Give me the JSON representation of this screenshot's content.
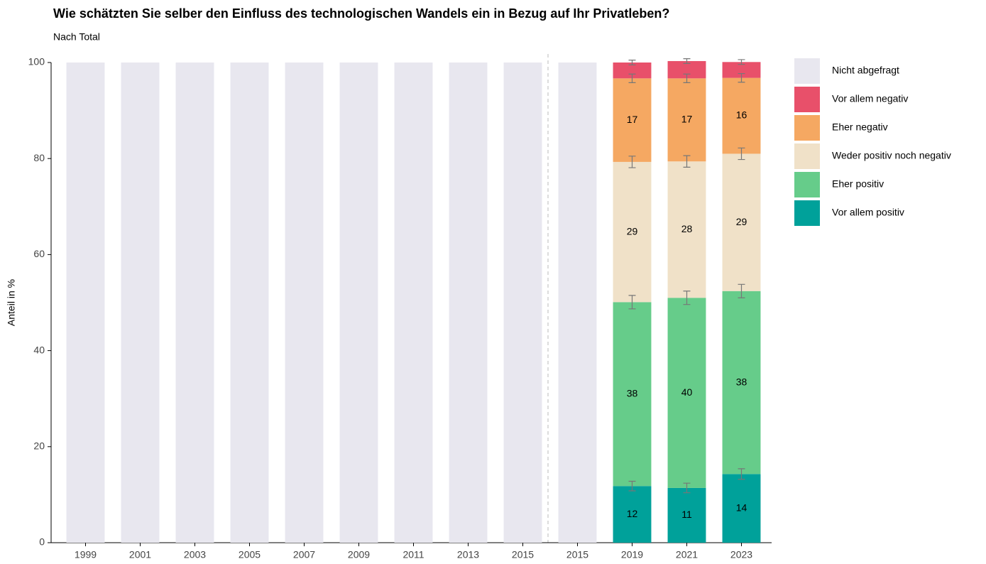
{
  "chart_data": {
    "type": "stacked_bar",
    "title": "Wie schätzten Sie selber den Einfluss des technologischen Wandels ein in Bezug auf Ihr Privatleben?",
    "subtitle": "Nach Total",
    "y_label": "Anteil in %",
    "categories": [
      "1999",
      "2001",
      "2003",
      "2005",
      "2007",
      "2009",
      "2011",
      "2013",
      "2015",
      "2015",
      "2019",
      "2021",
      "2023"
    ],
    "series": [
      {
        "name": "Vor allem positiv",
        "color": "#00a19a",
        "values": [
          null,
          null,
          null,
          null,
          null,
          null,
          null,
          null,
          null,
          null,
          11.8,
          11.4,
          14.3
        ],
        "value_labels": [
          null,
          null,
          null,
          null,
          null,
          null,
          null,
          null,
          null,
          null,
          "12",
          "11",
          "14"
        ],
        "errors": [
          null,
          null,
          null,
          null,
          null,
          null,
          null,
          null,
          null,
          null,
          1.0,
          1.0,
          1.1
        ]
      },
      {
        "name": "Eher positiv",
        "color": "#66cc8a",
        "values": [
          null,
          null,
          null,
          null,
          null,
          null,
          null,
          null,
          null,
          null,
          38.3,
          39.6,
          38.1
        ],
        "value_labels": [
          null,
          null,
          null,
          null,
          null,
          null,
          null,
          null,
          null,
          null,
          "38",
          "40",
          "38"
        ],
        "errors": [
          null,
          null,
          null,
          null,
          null,
          null,
          null,
          null,
          null,
          null,
          1.4,
          1.4,
          1.4
        ]
      },
      {
        "name": "Weder positiv noch negativ",
        "color": "#f0e1c8",
        "values": [
          null,
          null,
          null,
          null,
          null,
          null,
          null,
          null,
          null,
          null,
          29.2,
          28.4,
          28.6
        ],
        "value_labels": [
          null,
          null,
          null,
          null,
          null,
          null,
          null,
          null,
          null,
          null,
          "29",
          "28",
          "29"
        ],
        "errors": [
          null,
          null,
          null,
          null,
          null,
          null,
          null,
          null,
          null,
          null,
          1.2,
          1.2,
          1.2
        ]
      },
      {
        "name": "Eher negativ",
        "color": "#f5a862",
        "values": [
          null,
          null,
          null,
          null,
          null,
          null,
          null,
          null,
          null,
          null,
          17.4,
          17.3,
          15.8
        ],
        "value_labels": [
          null,
          null,
          null,
          null,
          null,
          null,
          null,
          null,
          null,
          null,
          "17",
          "17",
          "16"
        ],
        "errors": [
          null,
          null,
          null,
          null,
          null,
          null,
          null,
          null,
          null,
          null,
          0.9,
          0.9,
          0.9
        ]
      },
      {
        "name": "Vor allem negativ",
        "color": "#e8506a",
        "values": [
          null,
          null,
          null,
          null,
          null,
          null,
          null,
          null,
          null,
          null,
          3.3,
          3.6,
          3.3
        ],
        "errors": [
          null,
          null,
          null,
          null,
          null,
          null,
          null,
          null,
          null,
          null,
          0.5,
          0.5,
          0.5
        ]
      },
      {
        "name": "Nicht abgefragt",
        "color": "#e8e7ef",
        "values": [
          100,
          100,
          100,
          100,
          100,
          100,
          100,
          100,
          100,
          100,
          null,
          null,
          null
        ]
      }
    ],
    "ylim": [
      0,
      100
    ],
    "yticks": [
      0,
      20,
      40,
      60,
      80,
      100
    ]
  }
}
